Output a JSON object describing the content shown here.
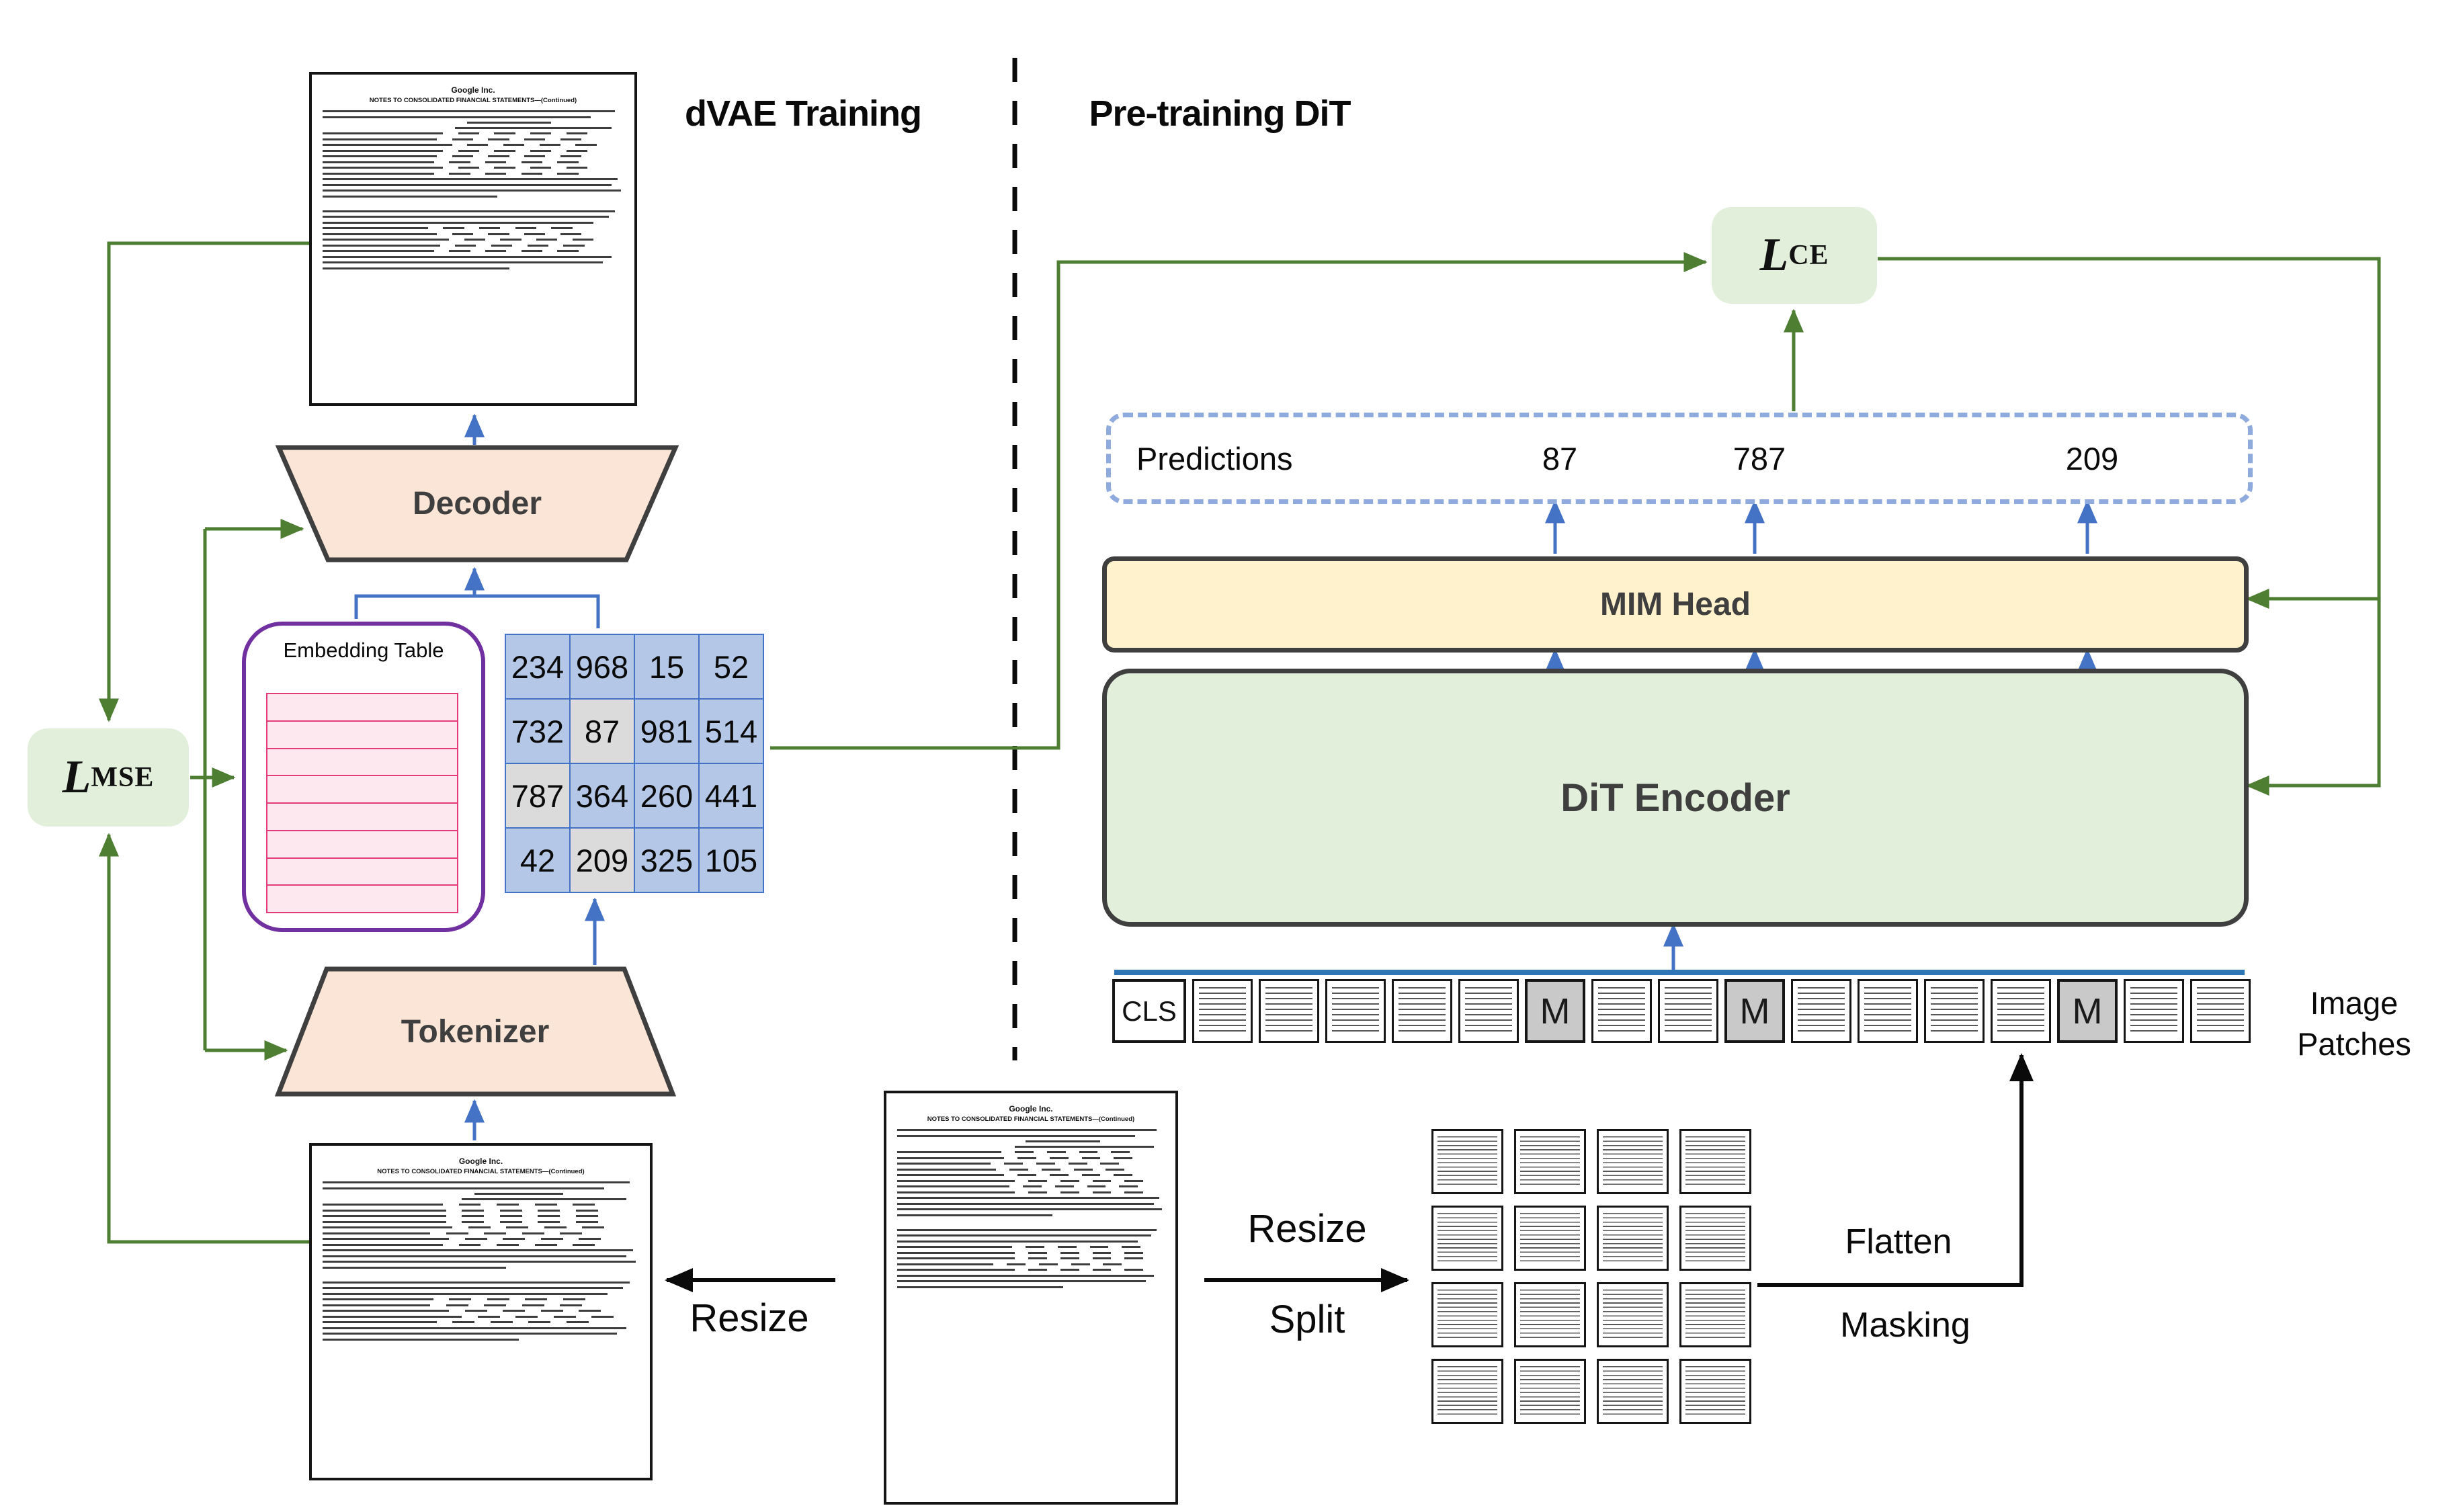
{
  "section_titles": {
    "left": "dVAE Training",
    "right": "Pre-training DiT"
  },
  "losses": {
    "mse": {
      "symbol": "L",
      "subscript": "MSE"
    },
    "ce": {
      "symbol": "L",
      "subscript": "CE"
    }
  },
  "dvae": {
    "decoder_label": "Decoder",
    "tokenizer_label": "Tokenizer",
    "embedding_table": {
      "title": "Embedding Table",
      "row_count": 8
    },
    "token_grid": {
      "rows": 4,
      "cols": 4,
      "cells": [
        {
          "value": "234",
          "masked": false
        },
        {
          "value": "968",
          "masked": false
        },
        {
          "value": "15",
          "masked": false
        },
        {
          "value": "52",
          "masked": false
        },
        {
          "value": "732",
          "masked": false
        },
        {
          "value": "87",
          "masked": true
        },
        {
          "value": "981",
          "masked": false
        },
        {
          "value": "514",
          "masked": false
        },
        {
          "value": "787",
          "masked": true
        },
        {
          "value": "364",
          "masked": false
        },
        {
          "value": "260",
          "masked": false
        },
        {
          "value": "441",
          "masked": false
        },
        {
          "value": "42",
          "masked": false
        },
        {
          "value": "209",
          "masked": true
        },
        {
          "value": "325",
          "masked": false
        },
        {
          "value": "105",
          "masked": false
        }
      ]
    }
  },
  "dit": {
    "predictions": {
      "label": "Predictions",
      "values": [
        "87",
        "787",
        "209"
      ]
    },
    "mim_head_label": "MIM Head",
    "encoder_label": "DiT Encoder",
    "patches": {
      "cls_label": "CLS",
      "mask_label": "M",
      "sequence": [
        "cls",
        "patch",
        "patch",
        "patch",
        "patch",
        "patch",
        "mask",
        "patch",
        "patch",
        "mask",
        "patch",
        "patch",
        "patch",
        "patch",
        "mask",
        "patch",
        "patch"
      ],
      "label": "Image Patches"
    }
  },
  "ops": {
    "resize_left": "Resize",
    "resize_right": "Resize",
    "split": "Split",
    "flatten": "Flatten",
    "masking": "Masking"
  },
  "document": {
    "title": "Google Inc.",
    "subtitle": "NOTES TO CONSOLIDATED FINANCIAL STATEMENTS—(Continued)"
  },
  "colors": {
    "loss_green": "#4e7e32",
    "arrow_blue": "#4472c4",
    "flatten_blue": "#2e75b6",
    "trapezoid_fill": "#fbe5d6",
    "trapezoid_border": "#3f3f3f",
    "mim_fill": "#fff2cc",
    "encoder_fill": "#e2efda",
    "token_fill": "#b4c7e7",
    "token_masked_fill": "#dbdbdb",
    "embedding_purple": "#7030a0",
    "embedding_row_pink": "#e23b77",
    "prediction_dash": "#8faadc"
  }
}
